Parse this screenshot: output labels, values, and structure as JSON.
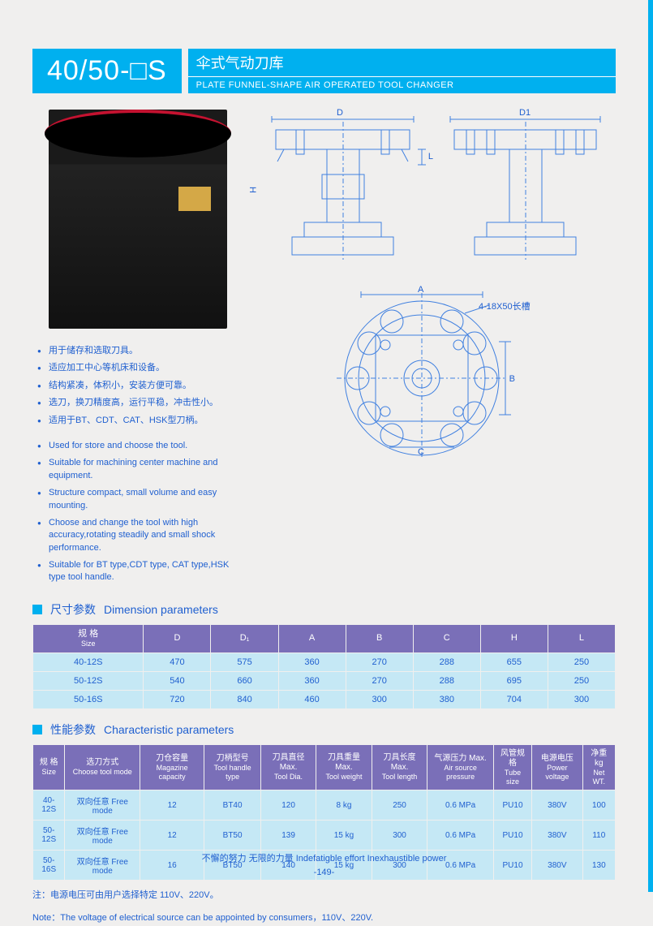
{
  "header": {
    "model": "40/50-□S",
    "title_cn": "伞式气动刀库",
    "title_en": "PLATE FUNNEL-SHAPE AIR OPERATED TOOL CHANGER"
  },
  "features_cn": [
    "用于储存和选取刀具。",
    "适应加工中心等机床和设备。",
    "结构紧凑，体积小，安装方便可靠。",
    "选刀，换刀精度高，运行平稳，冲击性小。",
    "适用于BT、CDT、CAT、HSK型刀柄。"
  ],
  "features_en": [
    "Used for store and choose the tool.",
    "Suitable for machining center machine and equipment.",
    "Structure compact, small volume and easy mounting.",
    "Choose and change the tool with high accuracy,rotating steadily and small shock performance.",
    "Suitable for BT type,CDT type, CAT type,HSK type tool handle."
  ],
  "diagram_labels": {
    "d": "D",
    "d1": "D1",
    "h": "H",
    "l": "L",
    "a": "A",
    "b": "B",
    "c": "C",
    "slot": "4-18X50长槽"
  },
  "section1": {
    "cn": "尺寸参数",
    "en": "Dimension parameters"
  },
  "table1": {
    "headers": [
      {
        "cn": "规 格",
        "en": "Size"
      },
      {
        "cn": "",
        "en": "D"
      },
      {
        "cn": "",
        "en": "D₁"
      },
      {
        "cn": "",
        "en": "A"
      },
      {
        "cn": "",
        "en": "B"
      },
      {
        "cn": "",
        "en": "C"
      },
      {
        "cn": "",
        "en": "H"
      },
      {
        "cn": "",
        "en": "L"
      }
    ],
    "rows": [
      [
        "40-12S",
        "470",
        "575",
        "360",
        "270",
        "288",
        "655",
        "250"
      ],
      [
        "50-12S",
        "540",
        "660",
        "360",
        "270",
        "288",
        "695",
        "250"
      ],
      [
        "50-16S",
        "720",
        "840",
        "460",
        "300",
        "380",
        "704",
        "300"
      ]
    ]
  },
  "section2": {
    "cn": "性能参数",
    "en": "Characteristic parameters"
  },
  "table2": {
    "headers": [
      {
        "cn": "规 格",
        "en": "Size"
      },
      {
        "cn": "选刀方式",
        "en": "Choose tool mode"
      },
      {
        "cn": "刀仓容量",
        "en": "Magazine capacity"
      },
      {
        "cn": "刀柄型号",
        "en": "Tool handle type"
      },
      {
        "cn": "刀具直径 Max.",
        "en": "Tool Dia."
      },
      {
        "cn": "刀具重量 Max.",
        "en": "Tool weight"
      },
      {
        "cn": "刀具长度 Max.",
        "en": "Tool length"
      },
      {
        "cn": "气源压力 Max.",
        "en": "Air source pressure"
      },
      {
        "cn": "风管规格",
        "en": "Tube size"
      },
      {
        "cn": "电源电压",
        "en": "Power voltage"
      },
      {
        "cn": "净重 kg",
        "en": "Net WT."
      }
    ],
    "rows": [
      [
        "40-12S",
        "双向任意 Free mode",
        "12",
        "BT40",
        "120",
        "8 kg",
        "250",
        "0.6 MPa",
        "PU10",
        "380V",
        "100"
      ],
      [
        "50-12S",
        "双向任意 Free mode",
        "12",
        "BT50",
        "139",
        "15 kg",
        "300",
        "0.6 MPa",
        "PU10",
        "380V",
        "110"
      ],
      [
        "50-16S",
        "双向任意 Free mode",
        "16",
        "BT50",
        "140",
        "15 kg",
        "300",
        "0.6 MPa",
        "PU10",
        "380V",
        "130"
      ]
    ]
  },
  "notes": {
    "cn": "注：电源电压可由用户选择特定 110V、220V。",
    "en": "Note：The voltage of electrical source can be appointed by consumers，110V、220V."
  },
  "footer": {
    "slogan": "不懈的努力  无限的力量  Indefatigble effort  Inexhaustible power",
    "page": "-149-"
  },
  "colors": {
    "cyan": "#00b0ef",
    "purple": "#7a6fb8",
    "lightblue": "#c5e8f5",
    "textblue": "#2060d0",
    "bg": "#f0efee"
  }
}
